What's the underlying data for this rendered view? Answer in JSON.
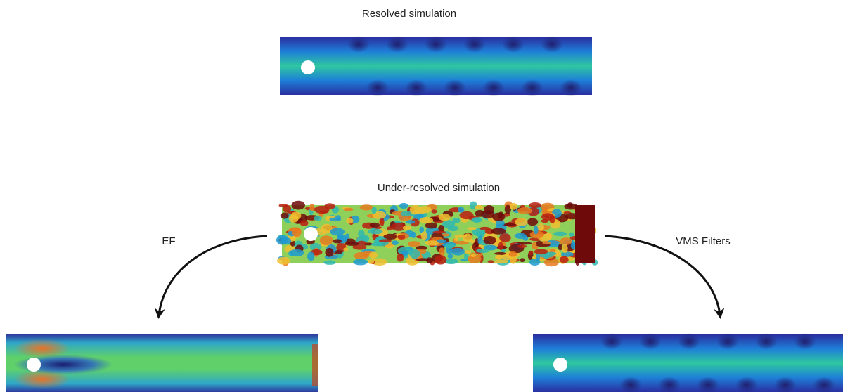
{
  "top": {
    "title": "Resolved simulation"
  },
  "middle": {
    "title": "Under-resolved simulation"
  },
  "arrows": {
    "left": "EF",
    "right": "VMS Filters"
  }
}
